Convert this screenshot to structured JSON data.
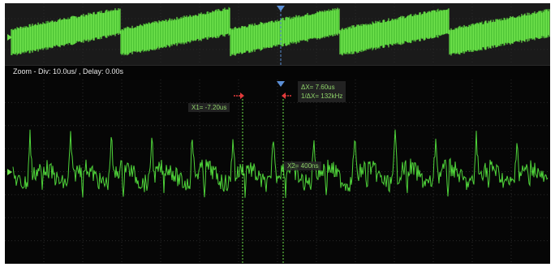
{
  "zoom_status": "Zoom - Div: 10.0us/ ,  Delay: 0.00s",
  "cursors": {
    "x1_label": "X1= -7.20us",
    "x2_label": "X2= 400ns",
    "delta_x_label": "ΔX= 7.60us",
    "inv_delta_x_label": "1/ΔX= 132kHz"
  },
  "colors": {
    "trace": "#6fe24c",
    "trace_dark": "#3db52a",
    "cursor_marker": "#e23b3b",
    "trigger_marker": "#5b8fd6",
    "grid": "#2a2a2a",
    "label_text": "#8fd36a"
  },
  "icons": {
    "channel_marker": "channel-level-marker-icon",
    "trigger_marker": "trigger-position-icon",
    "cursor_arrow": "cursor-arrow-icon"
  }
}
